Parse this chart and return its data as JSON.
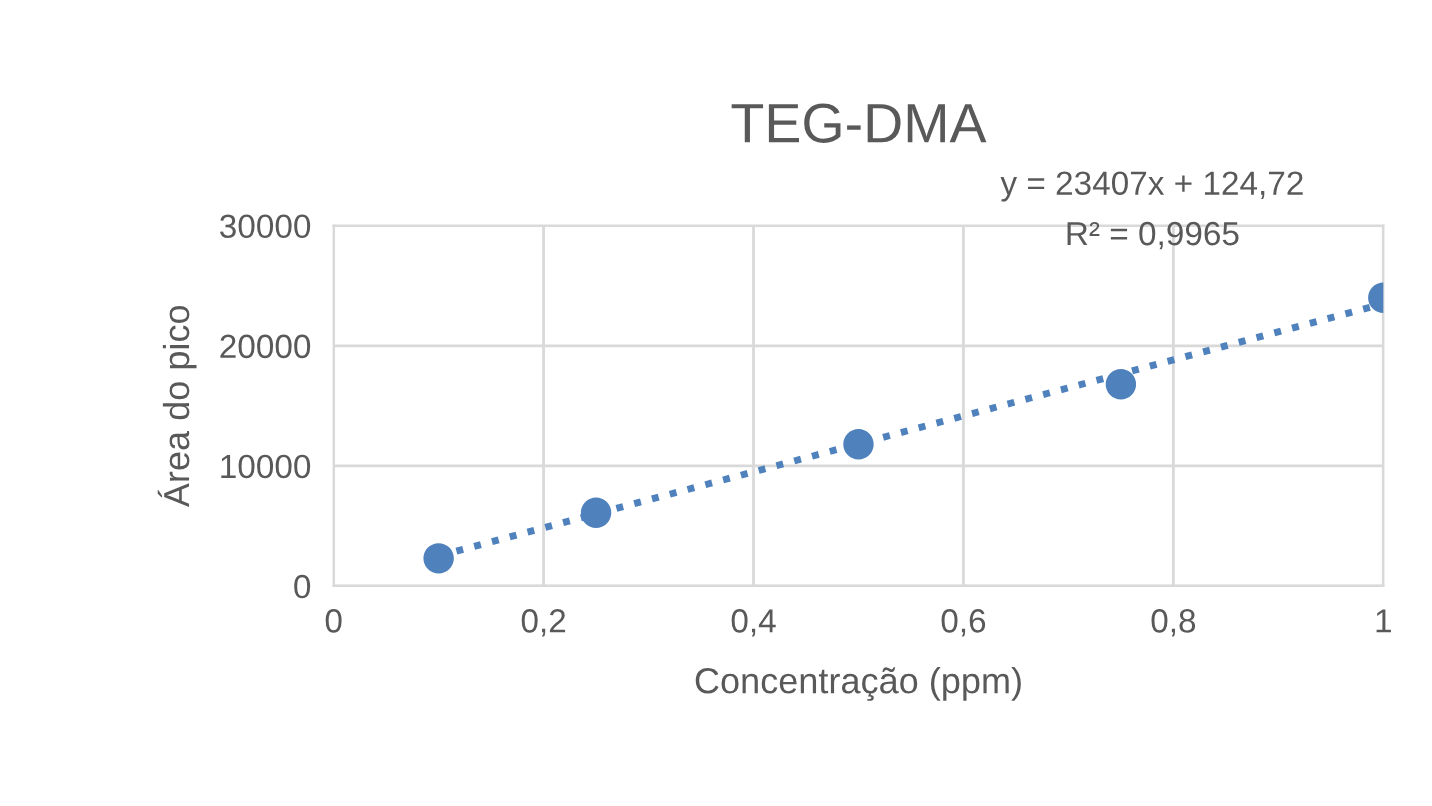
{
  "chart_data": {
    "type": "scatter",
    "title": "TEG-DMA",
    "xlabel": "Concentração (ppm)",
    "ylabel": "Área do pico",
    "series": [
      {
        "color": "#4f81bd",
        "x": [
          0.1,
          0.25,
          0.5,
          0.75,
          1.0
        ],
        "values": [
          2300,
          6100,
          11800,
          16800,
          24000
        ],
        "marker": "circle"
      },
      {
        "type": "line",
        "color": "#4f81bd",
        "x": [
          0.1,
          1.0
        ],
        "values": [
          2500,
          23500
        ],
        "line_style": "dotted"
      }
    ],
    "xlim": [
      0,
      1
    ],
    "xticks": [
      0,
      {
        "value": 0.2,
        "label": "0,2"
      },
      {
        "value": 0.4,
        "label": "0,4"
      },
      {
        "value": 0.6,
        "label": "0,6"
      },
      {
        "value": 0.8,
        "label": "0,8"
      },
      1
    ],
    "ylim": [
      0,
      30000
    ],
    "yticks": [
      0,
      10000,
      20000,
      30000
    ],
    "grid": true,
    "annotations": [
      "y = 23407x + 124,72",
      "R² = 0,9965"
    ]
  }
}
